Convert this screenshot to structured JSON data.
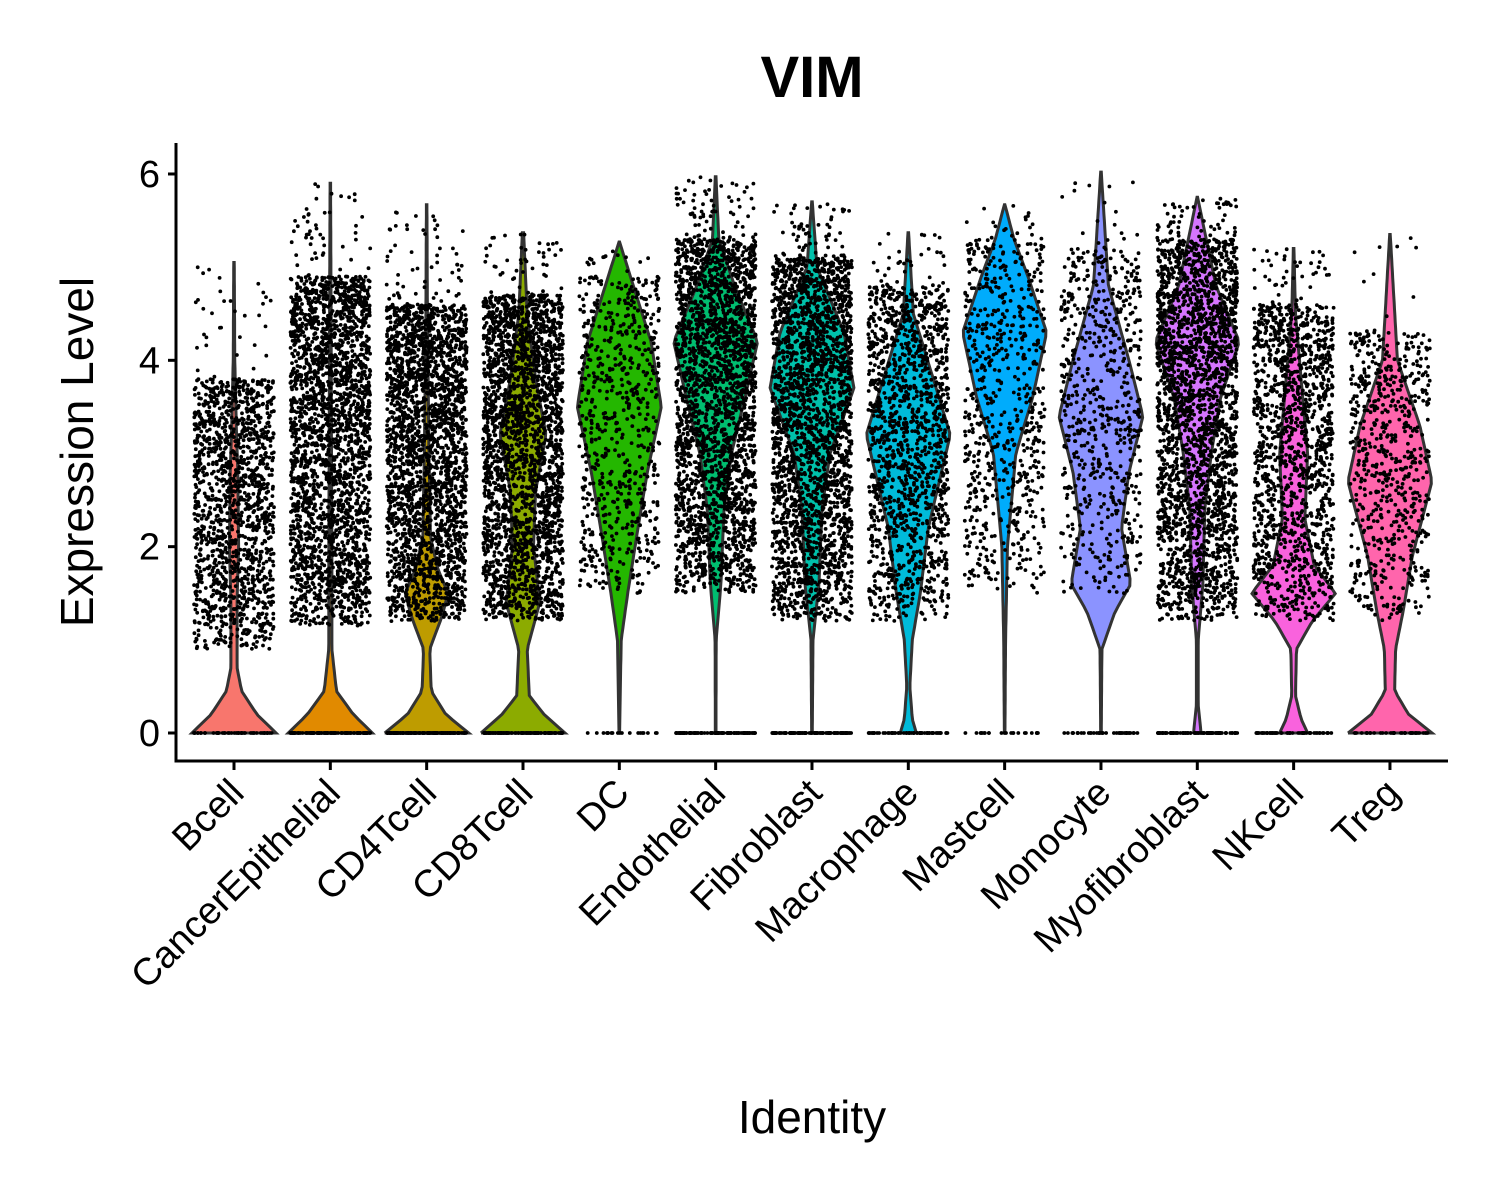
{
  "chart_data": {
    "type": "violin",
    "title": "VIM",
    "xlabel": "Identity",
    "ylabel": "Expression Level",
    "ylim": [
      -0.3,
      6.3
    ],
    "yticks": [
      0,
      2,
      4,
      6
    ],
    "grid": false,
    "legend": "none",
    "categories": [
      "Bcell",
      "CancerEpithelial",
      "CD4Tcell",
      "CD8Tcell",
      "DC",
      "Endothelial",
      "Fibroblast",
      "Macrophage",
      "Mastcell",
      "Monocyte",
      "Myofibroblast",
      "NKcell",
      "Treg"
    ],
    "series": [
      {
        "category": "Bcell",
        "color": "#F8766D",
        "max": 5.05,
        "ymin_cluster": 0.9,
        "ymax_cluster": 3.8,
        "profile": [
          [
            0,
            0.55
          ],
          [
            0.2,
            0.3
          ],
          [
            0.45,
            0.1
          ],
          [
            0.7,
            0.04
          ],
          [
            1.0,
            0.04
          ],
          [
            1.4,
            0.04
          ],
          [
            2.0,
            0.06
          ],
          [
            2.8,
            0.05
          ],
          [
            3.3,
            0.03
          ],
          [
            4.0,
            0.01
          ],
          [
            5.05,
            0.003
          ]
        ]
      },
      {
        "category": "CancerEpithelial",
        "color": "#E18A00",
        "max": 5.9,
        "ymin_cluster": 1.15,
        "ymax_cluster": 4.9,
        "profile": [
          [
            0,
            0.55
          ],
          [
            0.2,
            0.3
          ],
          [
            0.45,
            0.08
          ],
          [
            0.9,
            0.02
          ],
          [
            1.3,
            0.02
          ],
          [
            2.0,
            0.02
          ],
          [
            3.0,
            0.015
          ],
          [
            4.5,
            0.01
          ],
          [
            5.9,
            0.003
          ]
        ]
      },
      {
        "category": "CD4Tcell",
        "color": "#BE9C00",
        "max": 5.67,
        "ymin_cluster": 1.2,
        "ymax_cluster": 4.6,
        "profile": [
          [
            0,
            0.55
          ],
          [
            0.2,
            0.25
          ],
          [
            0.45,
            0.06
          ],
          [
            0.9,
            0.04
          ],
          [
            1.25,
            0.2
          ],
          [
            1.5,
            0.28
          ],
          [
            1.75,
            0.15
          ],
          [
            2.1,
            0.05
          ],
          [
            3.0,
            0.03
          ],
          [
            4.5,
            0.01
          ],
          [
            5.67,
            0.003
          ]
        ]
      },
      {
        "category": "CD8Tcell",
        "color": "#8CAB00",
        "max": 5.37,
        "ymin_cluster": 1.2,
        "ymax_cluster": 4.7,
        "profile": [
          [
            0,
            0.2
          ],
          [
            0.2,
            0.1
          ],
          [
            0.4,
            0.03
          ],
          [
            0.9,
            0.02
          ],
          [
            1.4,
            0.08
          ],
          [
            2.0,
            0.05
          ],
          [
            2.6,
            0.06
          ],
          [
            3.2,
            0.11
          ],
          [
            3.8,
            0.06
          ],
          [
            4.5,
            0.02
          ],
          [
            5.37,
            0.003
          ]
        ]
      },
      {
        "category": "DC",
        "color": "#24B700",
        "max": 5.27,
        "ymin_cluster": 1.5,
        "ymax_cluster": 4.9,
        "profile": [
          [
            0,
            0.003
          ],
          [
            1.0,
            0.02
          ],
          [
            1.5,
            0.09
          ],
          [
            2.2,
            0.2
          ],
          [
            2.8,
            0.3
          ],
          [
            3.5,
            0.45
          ],
          [
            4.2,
            0.34
          ],
          [
            4.8,
            0.15
          ],
          [
            5.27,
            0.003
          ]
        ]
      },
      {
        "category": "Endothelial",
        "color": "#00BE70",
        "max": 5.97,
        "ymin_cluster": 1.5,
        "ymax_cluster": 5.3,
        "profile": [
          [
            0,
            0.003
          ],
          [
            1.0,
            0.005
          ],
          [
            1.6,
            0.05
          ],
          [
            2.4,
            0.08
          ],
          [
            3.0,
            0.15
          ],
          [
            3.6,
            0.28
          ],
          [
            4.2,
            0.4
          ],
          [
            4.8,
            0.18
          ],
          [
            5.3,
            0.03
          ],
          [
            5.97,
            0.003
          ]
        ]
      },
      {
        "category": "Fibroblast",
        "color": "#00C1AB",
        "max": 5.7,
        "ymin_cluster": 1.2,
        "ymax_cluster": 5.1,
        "profile": [
          [
            0,
            0.003
          ],
          [
            1.0,
            0.01
          ],
          [
            1.6,
            0.07
          ],
          [
            2.4,
            0.1
          ],
          [
            3.0,
            0.18
          ],
          [
            3.7,
            0.42
          ],
          [
            4.3,
            0.32
          ],
          [
            5.0,
            0.05
          ],
          [
            5.7,
            0.003
          ]
        ]
      },
      {
        "category": "Macrophage",
        "color": "#00BBDA",
        "max": 5.37,
        "ymin_cluster": 1.2,
        "ymax_cluster": 4.8,
        "profile": [
          [
            0,
            0.08
          ],
          [
            0.15,
            0.04
          ],
          [
            0.5,
            0.015
          ],
          [
            1.0,
            0.04
          ],
          [
            1.5,
            0.12
          ],
          [
            2.2,
            0.2
          ],
          [
            3.2,
            0.42
          ],
          [
            3.8,
            0.25
          ],
          [
            4.5,
            0.05
          ],
          [
            5.37,
            0.003
          ]
        ]
      },
      {
        "category": "Mastcell",
        "color": "#00ACFC",
        "max": 5.67,
        "ymin_cluster": 1.5,
        "ymax_cluster": 5.3,
        "profile": [
          [
            0,
            0.003
          ],
          [
            1.0,
            0.01
          ],
          [
            2.0,
            0.03
          ],
          [
            3.0,
            0.12
          ],
          [
            3.6,
            0.3
          ],
          [
            4.3,
            0.45
          ],
          [
            4.9,
            0.25
          ],
          [
            5.3,
            0.1
          ],
          [
            5.67,
            0.003
          ]
        ]
      },
      {
        "category": "Monocyte",
        "color": "#8B93FF",
        "max": 6.02,
        "ymin_cluster": 1.5,
        "ymax_cluster": 5.2,
        "profile": [
          [
            0,
            0.003
          ],
          [
            0.9,
            0.01
          ],
          [
            1.3,
            0.15
          ],
          [
            1.6,
            0.32
          ],
          [
            2.2,
            0.22
          ],
          [
            2.8,
            0.3
          ],
          [
            3.4,
            0.45
          ],
          [
            4.0,
            0.3
          ],
          [
            4.8,
            0.08
          ],
          [
            6.02,
            0.003
          ]
        ]
      },
      {
        "category": "Myofibroblast",
        "color": "#D575FE",
        "max": 5.75,
        "ymin_cluster": 1.2,
        "ymax_cluster": 5.3,
        "profile": [
          [
            0,
            0.04
          ],
          [
            0.3,
            0.01
          ],
          [
            1.0,
            0.01
          ],
          [
            1.6,
            0.06
          ],
          [
            2.4,
            0.08
          ],
          [
            3.0,
            0.15
          ],
          [
            3.6,
            0.25
          ],
          [
            4.2,
            0.45
          ],
          [
            4.8,
            0.2
          ],
          [
            5.75,
            0.003
          ]
        ]
      },
      {
        "category": "NKcell",
        "color": "#F962DD",
        "max": 5.2,
        "ymin_cluster": 1.2,
        "ymax_cluster": 4.6,
        "profile": [
          [
            0,
            0.15
          ],
          [
            0.15,
            0.08
          ],
          [
            0.4,
            0.02
          ],
          [
            0.9,
            0.03
          ],
          [
            1.2,
            0.2
          ],
          [
            1.5,
            0.45
          ],
          [
            1.8,
            0.22
          ],
          [
            2.3,
            0.12
          ],
          [
            3.0,
            0.15
          ],
          [
            3.8,
            0.08
          ],
          [
            4.5,
            0.02
          ],
          [
            5.2,
            0.003
          ]
        ]
      },
      {
        "category": "Treg",
        "color": "#FF65AC",
        "max": 5.35,
        "ymin_cluster": 1.2,
        "ymax_cluster": 4.3,
        "profile": [
          [
            0,
            0.45
          ],
          [
            0.2,
            0.2
          ],
          [
            0.45,
            0.05
          ],
          [
            0.9,
            0.06
          ],
          [
            1.3,
            0.14
          ],
          [
            1.9,
            0.24
          ],
          [
            2.7,
            0.45
          ],
          [
            3.3,
            0.32
          ],
          [
            4.0,
            0.08
          ],
          [
            5.35,
            0.003
          ]
        ]
      }
    ]
  }
}
